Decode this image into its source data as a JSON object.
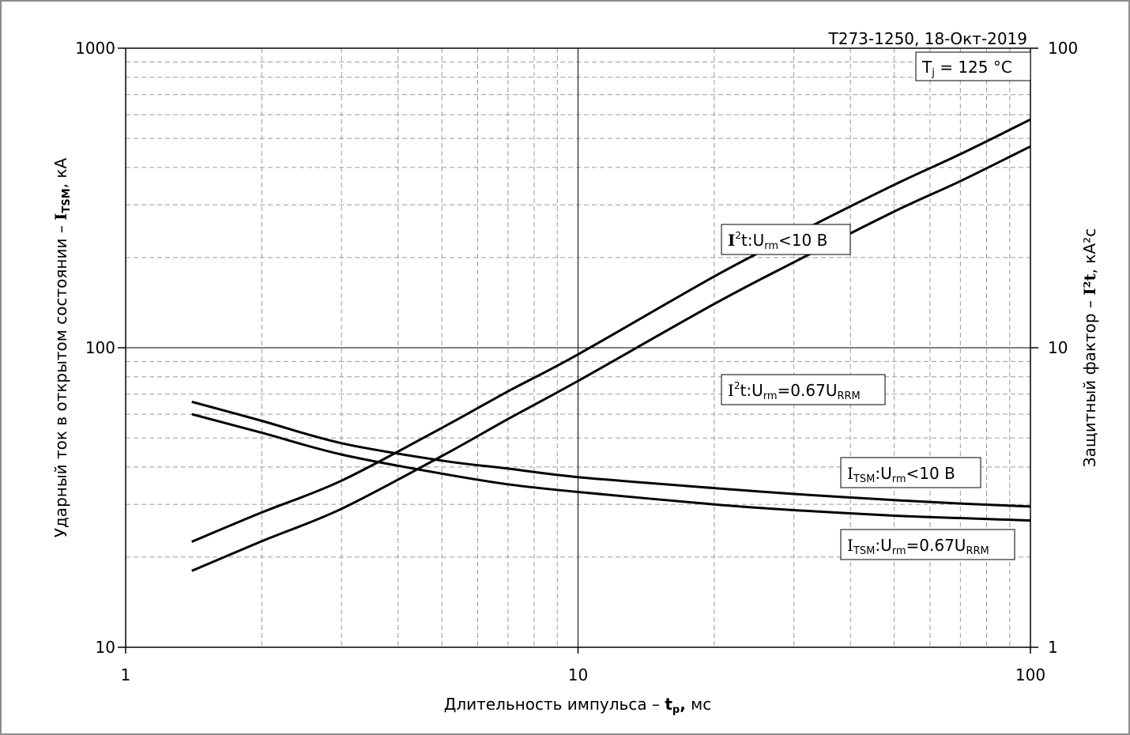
{
  "chart_data": {
    "type": "line",
    "x_scale": "log",
    "y_scale": "log",
    "xlim": [
      1,
      100
    ],
    "ylim_left": [
      10,
      1000
    ],
    "ylim_right": [
      1,
      100
    ],
    "grid": true,
    "x_ticks": [
      "1",
      "10",
      "100"
    ],
    "y_left_ticks": [
      "10",
      "100",
      "1000"
    ],
    "y_right_ticks": [
      "1",
      "10",
      "100"
    ],
    "xlabel": {
      "prefix": "Длительность импульса – ",
      "sym": "t",
      "sub": "p",
      "suffix": ", мс"
    },
    "ylabel_left": {
      "prefix": "Ударный ток в открытом состоянии – ",
      "sym": "I",
      "sub": "TSM",
      "suffix": ", кА"
    },
    "ylabel_right": {
      "prefix": "Защитный фактор – ",
      "sym": "I²t",
      "suffix": ", кА²с"
    },
    "header": "T273-1250, 18-Окт-2019",
    "condition": {
      "sym": "T",
      "sub": "j",
      "rest": " = 125 °C"
    },
    "series": [
      {
        "name": "I²t:Urm<10 В",
        "axis": "right",
        "x": [
          1.4,
          2,
          3,
          5,
          7,
          10,
          20,
          30,
          50,
          70,
          100
        ],
        "y": [
          2.25,
          2.82,
          3.6,
          5.4,
          7.15,
          9.5,
          17.3,
          23.8,
          35.0,
          44.3,
          57.8
        ]
      },
      {
        "name": "I²t:Urm=0.67URRM",
        "axis": "right",
        "x": [
          1.4,
          2,
          3,
          5,
          7,
          10,
          20,
          30,
          50,
          70,
          100
        ],
        "y": [
          1.8,
          2.26,
          2.9,
          4.35,
          5.78,
          7.75,
          14.0,
          19.3,
          28.5,
          36.0,
          47.0
        ]
      },
      {
        "name": "ITSM:Urm<10 В",
        "axis": "left",
        "x": [
          1.4,
          2,
          3,
          5,
          7,
          10,
          20,
          30,
          50,
          70,
          100
        ],
        "y": [
          66,
          57,
          48,
          42,
          39.5,
          37,
          34,
          32.5,
          31,
          30.2,
          29.5
        ]
      },
      {
        "name": "ITSM:Urm=0.67URRM",
        "axis": "left",
        "x": [
          1.4,
          2,
          3,
          5,
          7,
          10,
          20,
          30,
          50,
          70,
          100
        ],
        "y": [
          60,
          52,
          44,
          38,
          35,
          33,
          30,
          28.7,
          27.5,
          27,
          26.5
        ]
      }
    ],
    "annotations": [
      {
        "id": "a1",
        "base": "I",
        "sup": "2",
        "mid": "t:U",
        "sub1": "rm",
        "rest": "<10 В"
      },
      {
        "id": "a2",
        "base": "I",
        "sup": "2",
        "mid": "t:U",
        "sub1": "rm",
        "rest": "=0.67U",
        "sub2": "RRM"
      },
      {
        "id": "a3",
        "base": "I",
        "sub0": "TSM",
        "mid": ":U",
        "sub1": "rm",
        "rest": "<10 В"
      },
      {
        "id": "a4",
        "base": "I",
        "sub0": "TSM",
        "mid": ":U",
        "sub1": "rm",
        "rest": "=0.67U",
        "sub2": "RRM"
      }
    ]
  }
}
